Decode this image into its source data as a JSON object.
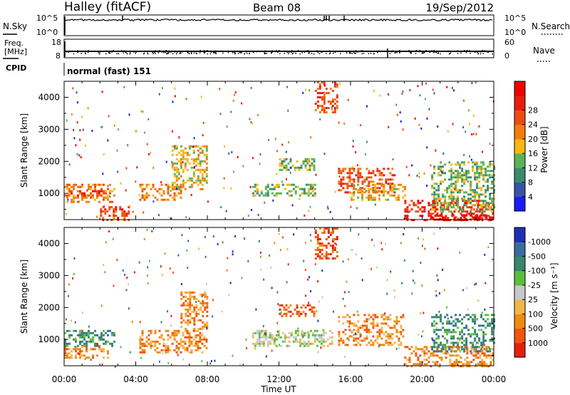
{
  "header": {
    "station": "Halley (fitACF)",
    "beam": "Beam 08",
    "date": "19/Sep/2012"
  },
  "noise_panel": {
    "left_label": "N.Sky",
    "right_label": "N.Search",
    "ticks_left": [
      "10^5",
      "10^0"
    ],
    "ticks_right": [
      "10^5",
      "10^0"
    ]
  },
  "freq_panel": {
    "left_label_1": "Freq.",
    "left_label_2": "[MHz]",
    "right_label": "Nave",
    "ticks_left": [
      "18",
      "8"
    ],
    "ticks_right": [
      "60",
      "0"
    ]
  },
  "cpid_panel": {
    "label": "CPID",
    "text": "normal (fast) 151"
  },
  "time_axis": {
    "label": "Time UT",
    "ticks": [
      "00:00",
      "04:00",
      "08:00",
      "12:00",
      "16:00",
      "20:00",
      "00:00"
    ]
  },
  "chart_data": [
    {
      "type": "heatmap",
      "panel": "power",
      "xlabel": "Time UT",
      "ylabel": "Slant Range [km]",
      "xlim_hours": [
        0,
        24
      ],
      "ylim_km": [
        180,
        4500
      ],
      "yticks": [
        1000,
        2000,
        3000,
        4000
      ],
      "colorbar": {
        "label": "Power [dB]",
        "ticks": [
          "4",
          "8",
          "12",
          "16",
          "20",
          "24",
          "28"
        ],
        "colors": [
          "#1b1bf5",
          "#3654a8",
          "#3b8a6c",
          "#59b354",
          "#f7b80f",
          "#f47c0f",
          "#ee4c11",
          "#e81d0f",
          "#f00000"
        ]
      },
      "regions": [
        {
          "t0": 0.0,
          "t1": 2.8,
          "r0": 750,
          "r1": 1300,
          "level": 5
        },
        {
          "t0": 0.0,
          "t1": 2.2,
          "r0": 900,
          "r1": 1100,
          "level": 7
        },
        {
          "t0": 2.0,
          "t1": 3.6,
          "r0": 180,
          "r1": 600,
          "level": 6
        },
        {
          "t0": 4.2,
          "t1": 6.5,
          "r0": 800,
          "r1": 1300,
          "level": 5
        },
        {
          "t0": 6.0,
          "t1": 8.0,
          "r0": 1100,
          "r1": 2500,
          "level": 4
        },
        {
          "t0": 10.5,
          "t1": 14.0,
          "r0": 900,
          "r1": 1300,
          "level": 3
        },
        {
          "t0": 12.0,
          "t1": 14.0,
          "r0": 1700,
          "r1": 2100,
          "level": 3
        },
        {
          "t0": 14.0,
          "t1": 15.2,
          "r0": 3500,
          "r1": 4500,
          "level": 6
        },
        {
          "t0": 15.3,
          "t1": 18.5,
          "r0": 1000,
          "r1": 1800,
          "level": 6
        },
        {
          "t0": 16.0,
          "t1": 19.0,
          "r0": 800,
          "r1": 1300,
          "level": 4
        },
        {
          "t0": 19.0,
          "t1": 24.0,
          "r0": 180,
          "r1": 800,
          "level": 7
        },
        {
          "t0": 20.5,
          "t1": 24.0,
          "r0": 180,
          "r1": 350,
          "level": 8
        },
        {
          "t0": 20.5,
          "t1": 24.0,
          "r0": 400,
          "r1": 2000,
          "level": 3
        }
      ]
    },
    {
      "type": "heatmap",
      "panel": "velocity",
      "xlabel": "Time UT",
      "ylabel": "Slant Range [km]",
      "xlim_hours": [
        0,
        24
      ],
      "ylim_km": [
        180,
        4500
      ],
      "yticks": [
        1000,
        2000,
        3000,
        4000
      ],
      "colorbar": {
        "label": "Velocity [m s⁻¹]",
        "ticks": [
          "1000",
          "500",
          "100",
          "25",
          "-25",
          "-100",
          "-500",
          "-1000"
        ],
        "colors": [
          "#1f2fb5",
          "#3a6d9e",
          "#37876d",
          "#5bbf3b",
          "#c8c8c8",
          "#f2b648",
          "#f08a10",
          "#f0540e",
          "#e81d0f"
        ]
      },
      "regions": [
        {
          "t0": 0.0,
          "t1": 2.8,
          "r0": 800,
          "r1": 1300,
          "level": 2
        },
        {
          "t0": 0.0,
          "t1": 2.5,
          "r0": 400,
          "r1": 800,
          "level": 6
        },
        {
          "t0": 4.2,
          "t1": 8.0,
          "r0": 600,
          "r1": 1300,
          "level": 6
        },
        {
          "t0": 6.5,
          "t1": 8.0,
          "r0": 1300,
          "r1": 2500,
          "level": 6
        },
        {
          "t0": 10.5,
          "t1": 15.0,
          "r0": 800,
          "r1": 1300,
          "level": 4
        },
        {
          "t0": 12.0,
          "t1": 14.0,
          "r0": 1700,
          "r1": 2100,
          "level": 7
        },
        {
          "t0": 14.0,
          "t1": 15.2,
          "r0": 3500,
          "r1": 4500,
          "level": 7
        },
        {
          "t0": 15.3,
          "t1": 19.0,
          "r0": 800,
          "r1": 1800,
          "level": 6
        },
        {
          "t0": 19.0,
          "t1": 24.0,
          "r0": 180,
          "r1": 800,
          "level": 6
        },
        {
          "t0": 20.5,
          "t1": 24.0,
          "r0": 600,
          "r1": 1800,
          "level": 2
        }
      ]
    }
  ]
}
